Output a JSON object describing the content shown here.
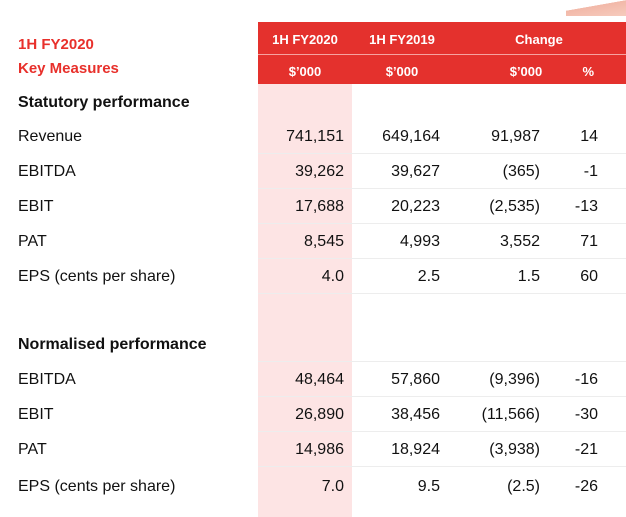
{
  "title": {
    "line1": "1H FY2020",
    "line2": "Key Measures"
  },
  "columns": {
    "c1": {
      "top": "1H FY2020",
      "unit": "$’000"
    },
    "c2": {
      "top": "1H FY2019",
      "unit": "$’000"
    },
    "c3": {
      "top": "Change",
      "unit": "$’000",
      "pct": "%"
    }
  },
  "sections": [
    {
      "heading": "Statutory performance",
      "rows": [
        {
          "label": "Revenue",
          "fy2020": "741,151",
          "fy2019": "649,164",
          "change": "91,987",
          "pct": "14"
        },
        {
          "label": "EBITDA",
          "fy2020": "39,262",
          "fy2019": "39,627",
          "change": "(365)",
          "pct": "-1"
        },
        {
          "label": "EBIT",
          "fy2020": "17,688",
          "fy2019": "20,223",
          "change": "(2,535)",
          "pct": "-13"
        },
        {
          "label": "PAT",
          "fy2020": "8,545",
          "fy2019": "4,993",
          "change": "3,552",
          "pct": "71"
        },
        {
          "label": "EPS (cents per share)",
          "fy2020": "4.0",
          "fy2019": "2.5",
          "change": "1.5",
          "pct": "60"
        }
      ]
    },
    {
      "heading": "Normalised performance",
      "rows": [
        {
          "label": "EBITDA",
          "fy2020": "48,464",
          "fy2019": "57,860",
          "change": "(9,396)",
          "pct": "-16"
        },
        {
          "label": "EBIT",
          "fy2020": "26,890",
          "fy2019": "38,456",
          "change": "(11,566)",
          "pct": "-30"
        },
        {
          "label": "PAT",
          "fy2020": "14,986",
          "fy2019": "18,924",
          "change": "(3,938)",
          "pct": "-21"
        },
        {
          "label": "EPS (cents per share)",
          "fy2020": "7.0",
          "fy2019": "9.5",
          "change": "(2.5)",
          "pct": "-26"
        }
      ]
    }
  ]
}
